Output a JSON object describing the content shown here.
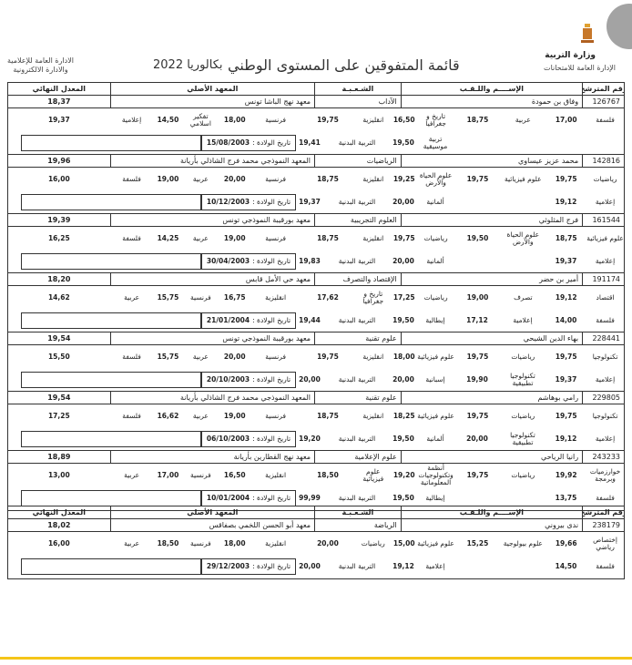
{
  "header": {
    "ministry": "وزارة التربية",
    "dept": "الإدارة العامة للامتحانات",
    "left_dept_line1": "الادارة العامة للإعلامية",
    "left_dept_line2": "والادارة الالكترونية",
    "title": "قائمة المتفوقين على المستوى الوطني",
    "bac": "بكالوريا 2022"
  },
  "columns": {
    "id": "رقم المترشح",
    "name": "الإســــم واللـقـب",
    "branch": "الشـعـبـة",
    "institute": "المعهد الأصلي",
    "avg": "المعدل النهائي"
  },
  "pe_label": "التربية البدنية",
  "birth_label": "تاريخ الولادة :",
  "colors": {
    "accent_line": "#f5c518"
  },
  "records": [
    {
      "id": "126767",
      "name": "وفاق بن حمودة",
      "branch": "الآداب",
      "institute": "معهد نهج الباشا تونس",
      "avg": "18,37",
      "row1": [
        [
          "فلسفة",
          "17,00"
        ],
        [
          "عربية",
          "18,75"
        ],
        [
          "تاريخ و جغرافيا",
          "16,50"
        ],
        [
          "انقليزية",
          "19,75"
        ],
        [
          "فرنسية",
          "18,00"
        ],
        [
          "تفكير اسلامي",
          "14,50"
        ],
        [
          "إعلامية",
          "19,37"
        ]
      ],
      "row2": [
        [
          "",
          ""
        ],
        [
          "",
          ""
        ],
        [
          "تربية موسيقية",
          "19,50"
        ]
      ],
      "pe": "19,41",
      "birth": "15/08/2003"
    },
    {
      "id": "142816",
      "name": "محمد عزيز عيساوي",
      "branch": "الرياضيات",
      "institute": "المعهد النموذجي محمد فرج الشاذلي بأريانة",
      "avg": "19,96",
      "row1": [
        [
          "رياضيات",
          "19,75"
        ],
        [
          "علوم فيزيائية",
          "19,75"
        ],
        [
          "علوم الحياة والأرض",
          "19,25"
        ],
        [
          "انقليزية",
          "18,75"
        ],
        [
          "فرنسية",
          "20,00"
        ],
        [
          "عربية",
          "19,00"
        ],
        [
          "فلسفة",
          "16,00"
        ]
      ],
      "row2": [
        [
          "إعلامية",
          "19,12"
        ],
        [
          "",
          ""
        ],
        [
          "ألمانية",
          "20,00"
        ]
      ],
      "pe": "19,37",
      "birth": "10/12/2003"
    },
    {
      "id": "161544",
      "name": "فرج المثلوثي",
      "branch": "العلوم التجريبية",
      "institute": "معهد بورقيبة النموذجي تونس",
      "avg": "19,39",
      "row1": [
        [
          "علوم فيزيائية",
          "18,75"
        ],
        [
          "علوم الحياة والأرض",
          "19,50"
        ],
        [
          "رياضيات",
          "19,75"
        ],
        [
          "انقليزية",
          "18,75"
        ],
        [
          "فرنسية",
          "19,00"
        ],
        [
          "عربية",
          "14,25"
        ],
        [
          "فلسفة",
          "16,25"
        ]
      ],
      "row2": [
        [
          "إعلامية",
          "19,37"
        ],
        [
          "",
          ""
        ],
        [
          "ألمانية",
          "20,00"
        ]
      ],
      "pe": "19,83",
      "birth": "30/04/2003"
    },
    {
      "id": "191174",
      "name": "أمير بن حضر",
      "branch": "الإقتصاد والتصرف",
      "institute": "معهد حي الأمل قابس",
      "avg": "18,20",
      "row1": [
        [
          "اقتصاد",
          "19,12"
        ],
        [
          "تصرف",
          "19,00"
        ],
        [
          "رياضيات",
          "17,25"
        ],
        [
          "تاريخ و جغرافيا",
          "17,62"
        ],
        [
          "انقليزية",
          "16,75"
        ],
        [
          "فرنسية",
          "15,75"
        ],
        [
          "عربية",
          "14,62"
        ]
      ],
      "row2": [
        [
          "فلسفة",
          "14,00"
        ],
        [
          "إعلامية",
          "17,12"
        ],
        [
          "إيطالية",
          "19,50"
        ]
      ],
      "pe": "19,44",
      "birth": "21/01/2004"
    },
    {
      "id": "228441",
      "name": "بهاء الدين الشيحي",
      "branch": "علوم تقنية",
      "institute": "معهد بورقيبة النموذجي تونس",
      "avg": "19,54",
      "row1": [
        [
          "تكنولوجيا",
          "19,75"
        ],
        [
          "رياضيات",
          "19,75"
        ],
        [
          "علوم فيزيائية",
          "18,00"
        ],
        [
          "انقليزية",
          "19,75"
        ],
        [
          "فرنسية",
          "20,00"
        ],
        [
          "عربية",
          "15,75"
        ],
        [
          "فلسفة",
          "15,50"
        ]
      ],
      "row2": [
        [
          "إعلامية",
          "19,37"
        ],
        [
          "تكنولوجيا تطبيقية",
          "19,90"
        ],
        [
          "إسبانية",
          "20,00"
        ]
      ],
      "pe": "20,00",
      "birth": "20/10/2003"
    },
    {
      "id": "229805",
      "name": "رامي بوهاشم",
      "branch": "علوم تقنية",
      "institute": "المعهد النموذجي محمد فرج الشاذلي بأريانة",
      "avg": "19,54",
      "row1": [
        [
          "تكنولوجيا",
          "19,75"
        ],
        [
          "رياضيات",
          "19,75"
        ],
        [
          "علوم فيزيائية",
          "18,25"
        ],
        [
          "انقليزية",
          "18,75"
        ],
        [
          "فرنسية",
          "19,00"
        ],
        [
          "عربية",
          "16,62"
        ],
        [
          "فلسفة",
          "17,25"
        ]
      ],
      "row2": [
        [
          "إعلامية",
          "19,12"
        ],
        [
          "تكنولوجيا تطبيقية",
          "20,00"
        ],
        [
          "ألمانية",
          "19,50"
        ]
      ],
      "pe": "19,20",
      "birth": "06/10/2003"
    },
    {
      "id": "243233",
      "name": "رانيا الرياحي",
      "branch": "علوم الإعلامية",
      "institute": "معهد نهج القطارين بأريانة",
      "avg": "18,89",
      "row1": [
        [
          "خوارزميات وبرمجة",
          "19,92"
        ],
        [
          "رياضيات",
          "19,75"
        ],
        [
          "أنظمة وتكنولوجيات المعلوماتية",
          "19,20"
        ],
        [
          "علوم فيزيائية",
          "18,50"
        ],
        [
          "انقليزية",
          "16,50"
        ],
        [
          "فرنسية",
          "17,00"
        ],
        [
          "عربية",
          "13,00"
        ]
      ],
      "row2": [
        [
          "فلسفة",
          "13,75"
        ],
        [
          "",
          ""
        ],
        [
          "إيطالية",
          "19,50"
        ]
      ],
      "pe": "99,99",
      "birth": "10/01/2004"
    }
  ],
  "records2": [
    {
      "id": "238179",
      "name": "ندى بيروني",
      "branch": "الرياضة",
      "institute": "معهد أبو الحسن اللخمي بصفاقس",
      "avg": "18,02",
      "row1": [
        [
          "إختصاص رياضي",
          "19,66"
        ],
        [
          "علوم بيولوجية",
          "15,25"
        ],
        [
          "علوم فيزيائية",
          "15,00"
        ],
        [
          "رياضيات",
          "20,00"
        ],
        [
          "انقليزية",
          "18,00"
        ],
        [
          "فرنسية",
          "18,50"
        ],
        [
          "عربية",
          "16,00"
        ]
      ],
      "row2": [
        [
          "فلسفة",
          "14,50"
        ],
        [
          "",
          ""
        ],
        [
          "إعلامية",
          "19,12"
        ]
      ],
      "pe": "20,00",
      "birth": "29/12/2003"
    }
  ]
}
